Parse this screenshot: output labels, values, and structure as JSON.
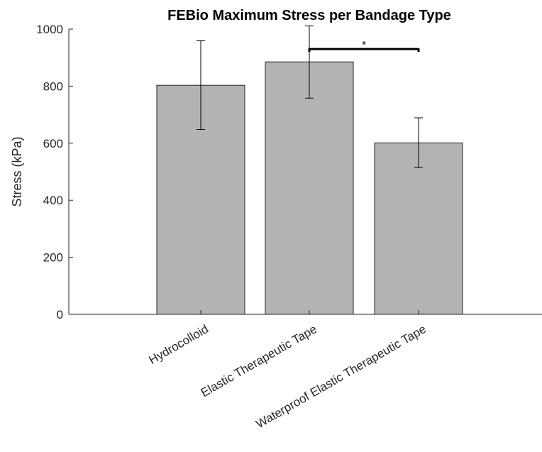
{
  "chart_data": {
    "type": "bar",
    "title": "FEBio Maximum Stress per Bandage Type",
    "xlabel": "",
    "ylabel": "Stress (kPa)",
    "ylim": [
      0,
      1000
    ],
    "yticks": [
      0,
      200,
      400,
      600,
      800,
      1000
    ],
    "categories": [
      "Hydrocolloid",
      "Elastic Therapeutic Tape",
      "Waterproof Elastic Therapeutic Tape"
    ],
    "series": [
      {
        "values": [
          803,
          885,
          601
        ],
        "error_low": [
          648,
          758,
          515
        ],
        "error_high": [
          959,
          1011,
          689
        ]
      }
    ],
    "bar_color": "#b3b3b3",
    "grid": false,
    "legend": "none",
    "annotations": [
      {
        "text": "*",
        "between": [
          "Elastic Therapeutic Tape",
          "Waterproof Elastic Therapeutic Tape"
        ],
        "y": 930
      }
    ]
  }
}
